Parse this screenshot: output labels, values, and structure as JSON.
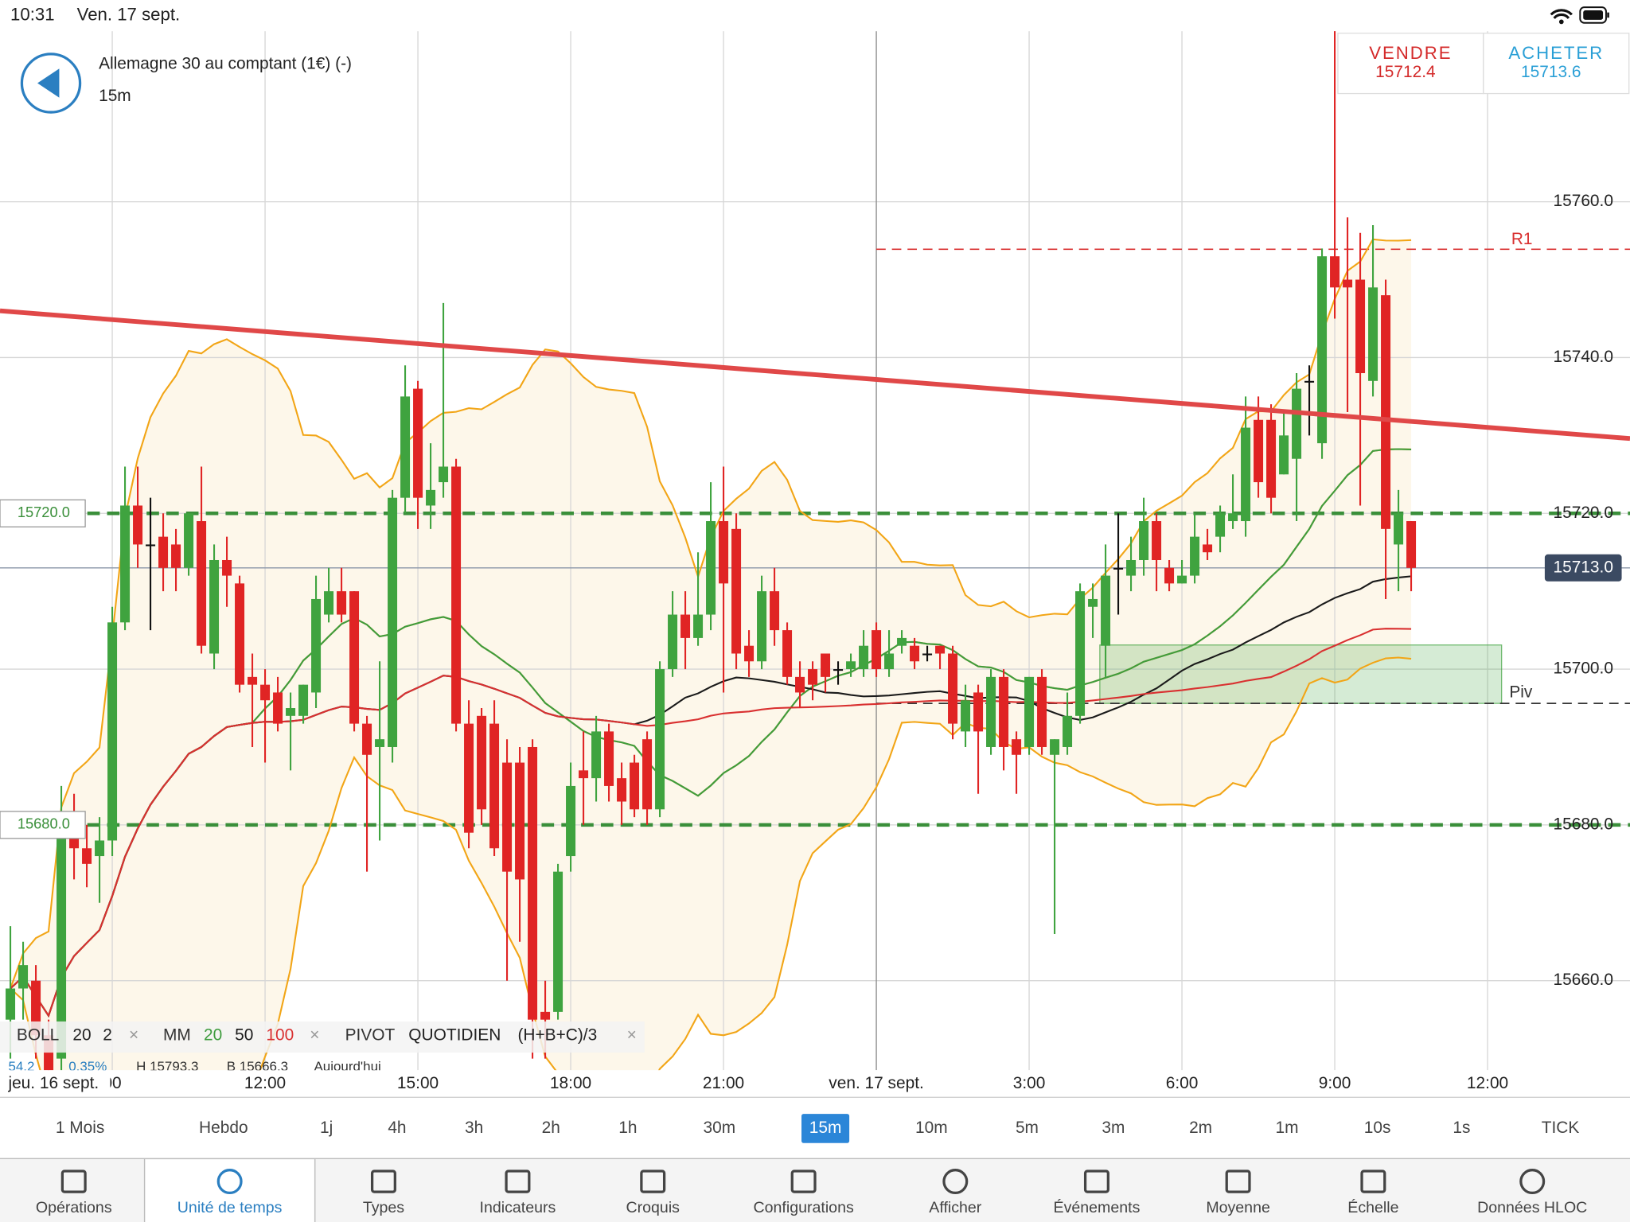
{
  "status": {
    "time": "10:31",
    "date": "Ven. 17 sept."
  },
  "header": {
    "instrument": "Allemagne 30 au comptant (1€) (-)",
    "timeframe": "15m"
  },
  "quotes": {
    "sell": {
      "label": "VENDRE",
      "price": "15712.4"
    },
    "buy": {
      "label": "ACHETER",
      "price": "15713.6"
    }
  },
  "chart_data": {
    "type": "candlestick",
    "up_color": "#3fa33f",
    "down_color": "#e02424",
    "xlim": [
      -0.816,
      127.184
    ],
    "ylim": [
      15648.5,
      15781.9
    ],
    "grid": true,
    "yticks": [
      {
        "value": 15760,
        "label": "15760.0"
      },
      {
        "value": 15740,
        "label": "15740.0"
      },
      {
        "value": 15720,
        "label": "15720.0"
      },
      {
        "value": 15700,
        "label": "15700.0"
      },
      {
        "value": 15680,
        "label": "15680.0"
      },
      {
        "value": 15660,
        "label": "15660.0"
      }
    ],
    "xticks": [
      {
        "value": 8,
        "label": "00"
      },
      {
        "value": 20,
        "label": "12:00"
      },
      {
        "value": 32,
        "label": "15:00"
      },
      {
        "value": 44,
        "label": "18:00"
      },
      {
        "value": 56,
        "label": "21:00"
      },
      {
        "value": 68,
        "label": "ven. 17 sept."
      },
      {
        "value": 80,
        "label": "3:00"
      },
      {
        "value": 92,
        "label": "6:00"
      },
      {
        "value": 104,
        "label": "9:00"
      },
      {
        "value": 116,
        "label": "12:00"
      }
    ],
    "separator_tick": 5,
    "day_label": "jeu. 16 sept.",
    "candles": [
      [
        15655,
        15667,
        15650,
        15659
      ],
      [
        15659,
        15665,
        15655,
        15662
      ],
      [
        15660,
        15662,
        15650,
        15653
      ],
      [
        15653,
        15655,
        15645,
        15648
      ],
      [
        15650,
        15685,
        15648,
        15680
      ],
      [
        15680,
        15684,
        15673,
        15677
      ],
      [
        15677,
        15680,
        15672,
        15675
      ],
      [
        15676,
        15681,
        15670,
        15678
      ],
      [
        15678,
        15708,
        15676,
        15706
      ],
      [
        15706,
        15726,
        15705,
        15721
      ],
      [
        15721,
        15726,
        15713,
        15716
      ],
      [
        15716,
        15722,
        15705,
        15716
      ],
      [
        15717,
        15720,
        15710,
        15713
      ],
      [
        15716,
        15718,
        15710,
        15713
      ],
      [
        15713,
        15720,
        15712,
        15720
      ],
      [
        15719,
        15726,
        15702,
        15703
      ],
      [
        15702,
        15716,
        15700,
        15714
      ],
      [
        15714,
        15717,
        15708,
        15712
      ],
      [
        15711,
        15712,
        15697,
        15698
      ],
      [
        15699,
        15702,
        15690,
        15698
      ],
      [
        15698,
        15700,
        15688,
        15696
      ],
      [
        15697,
        15699,
        15692,
        15693
      ],
      [
        15694,
        15697,
        15687,
        15695
      ],
      [
        15694,
        15698,
        15693,
        15698
      ],
      [
        15697,
        15712,
        15695,
        15709
      ],
      [
        15707,
        15713,
        15706,
        15710
      ],
      [
        15710,
        15713,
        15706,
        15707
      ],
      [
        15710,
        15710,
        15692,
        15693
      ],
      [
        15693,
        15694,
        15674,
        15689
      ],
      [
        15690,
        15701,
        15678,
        15691
      ],
      [
        15690,
        15723,
        15688,
        15722
      ],
      [
        15722,
        15739,
        15720,
        15735
      ],
      [
        15736,
        15737,
        15718,
        15722
      ],
      [
        15721,
        15729,
        15718,
        15723
      ],
      [
        15724,
        15747,
        15722,
        15726
      ],
      [
        15726,
        15727,
        15692,
        15693
      ],
      [
        15693,
        15696,
        15677,
        15679
      ],
      [
        15694,
        15695,
        15680,
        15682
      ],
      [
        15693,
        15696,
        15676,
        15677
      ],
      [
        15688,
        15691,
        15660,
        15674
      ],
      [
        15688,
        15690,
        15665,
        15673
      ],
      [
        15690,
        15691,
        15650,
        15655
      ],
      [
        15656,
        15660,
        15650,
        15655
      ],
      [
        15656,
        15675,
        15655,
        15674
      ],
      [
        15676,
        15688,
        15674,
        15685
      ],
      [
        15687,
        15692,
        15680,
        15686
      ],
      [
        15686,
        15694,
        15683,
        15692
      ],
      [
        15692,
        15693,
        15683,
        15685
      ],
      [
        15686,
        15688,
        15680,
        15683
      ],
      [
        15688,
        15689,
        15681,
        15682
      ],
      [
        15691,
        15692,
        15680,
        15682
      ],
      [
        15682,
        15701,
        15681,
        15700
      ],
      [
        15700,
        15710,
        15699,
        15707
      ],
      [
        15707,
        15710,
        15700,
        15704
      ],
      [
        15704,
        15715,
        15703,
        15707
      ],
      [
        15707,
        15724,
        15705,
        15719
      ],
      [
        15719,
        15726,
        15697,
        15711
      ],
      [
        15718,
        15720,
        15700,
        15702
      ],
      [
        15703,
        15705,
        15699,
        15701
      ],
      [
        15701,
        15712,
        15700,
        15710
      ],
      [
        15710,
        15713,
        15703,
        15705
      ],
      [
        15705,
        15706,
        15698,
        15699
      ],
      [
        15699,
        15701,
        15695,
        15697
      ],
      [
        15700,
        15701,
        15696,
        15698
      ],
      [
        15702,
        15702,
        15697,
        15699
      ],
      [
        15700,
        15701,
        15698,
        15700
      ],
      [
        15700,
        15702,
        15699,
        15701
      ],
      [
        15700,
        15705,
        15699,
        15703
      ],
      [
        15705,
        15706,
        15699,
        15700
      ],
      [
        15700,
        15705,
        15699,
        15702
      ],
      [
        15703,
        15705,
        15702,
        15704
      ],
      [
        15703,
        15704,
        15700,
        15701
      ],
      [
        15702,
        15703,
        15701,
        15702
      ],
      [
        15703,
        15703,
        15700,
        15702
      ],
      [
        15702,
        15703,
        15691,
        15693
      ],
      [
        15692,
        15698,
        15690,
        15696
      ],
      [
        15697,
        15698,
        15684,
        15692
      ],
      [
        15690,
        15700,
        15689,
        15699
      ],
      [
        15699,
        15700,
        15687,
        15690
      ],
      [
        15691,
        15692,
        15684,
        15689
      ],
      [
        15690,
        15699,
        15689,
        15699
      ],
      [
        15699,
        15700,
        15689,
        15690
      ],
      [
        15689,
        15691,
        15666,
        15691
      ],
      [
        15690,
        15697,
        15689,
        15694
      ],
      [
        15694,
        15711,
        15693,
        15710
      ],
      [
        15708,
        15711,
        15704,
        15709
      ],
      [
        15703,
        15716,
        15699,
        15712
      ],
      [
        15713,
        15720,
        15707,
        15713
      ],
      [
        15712,
        15717,
        15710,
        15714
      ],
      [
        15714,
        15722,
        15712,
        15719
      ],
      [
        15719,
        15720,
        15710,
        15714
      ],
      [
        15713,
        15714,
        15710,
        15711
      ],
      [
        15711,
        15714,
        15711,
        15712
      ],
      [
        15712,
        15720,
        15711,
        15717
      ],
      [
        15716,
        15718,
        15714,
        15715
      ],
      [
        15717,
        15721,
        15715,
        15720
      ],
      [
        15719,
        15725,
        15718,
        15720
      ],
      [
        15719,
        15735,
        15717,
        15731
      ],
      [
        15732,
        15735,
        15722,
        15724
      ],
      [
        15732,
        15734,
        15720,
        15722
      ],
      [
        15725,
        15733,
        15725,
        15730
      ],
      [
        15727,
        15738,
        15719,
        15736
      ],
      [
        15737,
        15739,
        15730,
        15737
      ],
      [
        15729,
        15754,
        15727,
        15753
      ],
      [
        15753,
        15782,
        15745,
        15749
      ],
      [
        15750,
        15758,
        15733,
        15749
      ],
      [
        15750,
        15756,
        15721,
        15738
      ],
      [
        15737,
        15757,
        15735,
        15749
      ],
      [
        15748,
        15750,
        15709,
        15718
      ],
      [
        15716,
        15723,
        15710,
        15720
      ],
      [
        15719,
        15719,
        15710,
        15713
      ]
    ],
    "bollinger": {
      "label": "BOLL",
      "period": 20,
      "mult": 2,
      "color": "#f2a516",
      "fill": "#fdf7ea"
    },
    "moving_averages": {
      "label": "MM",
      "series": [
        {
          "period": 20,
          "color": "#3e9c3e"
        },
        {
          "period": 50,
          "color": "#1a1a1a"
        },
        {
          "period": 100,
          "color": "#d93030"
        }
      ]
    },
    "pivot": {
      "label": "PIVOT",
      "mode": "QUOTIDIEN",
      "formula": "(H+B+C)/3"
    },
    "close_icon": "×",
    "info": [
      "54.2",
      "0.35%",
      "H 15793.3",
      "B 15666.3",
      "Aujourd'hui"
    ],
    "trendline": {
      "x": [
        -0.816,
        127.184
      ],
      "values": [
        15746.0,
        15729.6
      ],
      "color": "#e04848"
    },
    "levels": [
      {
        "value": 15720,
        "label": "15720.0",
        "color": "#3a8f3a"
      },
      {
        "value": 15680,
        "label": "15680.0",
        "color": "#3a8f3a"
      }
    ],
    "r1": {
      "name": "R1",
      "value": 15753.9,
      "from": 68,
      "color": "#d93030"
    },
    "piv": {
      "name": "Piv",
      "value": 15695.6,
      "from": 68,
      "color": "#333333"
    },
    "zone": {
      "x": [
        85.55,
        117.1
      ],
      "values": [
        15695.6,
        15703.1
      ],
      "color": "#3fa33f"
    },
    "current": {
      "value": 15713.0,
      "label": "15713.0"
    }
  },
  "timeframes": {
    "items": [
      "1 Mois",
      "Hebdo",
      "1j",
      "4h",
      "3h",
      "2h",
      "1h",
      "30m",
      "15m",
      "10m",
      "5m",
      "3m",
      "2m",
      "1m",
      "10s",
      "1s",
      "TICK"
    ],
    "selected": 8
  },
  "toolbar": {
    "items": [
      "Opérations",
      "Unité de temps",
      "Types",
      "Indicateurs",
      "Croquis",
      "Configurations",
      "Afficher",
      "Événements",
      "Moyenne",
      "Échelle",
      "Données HLOC"
    ],
    "active": 1
  }
}
